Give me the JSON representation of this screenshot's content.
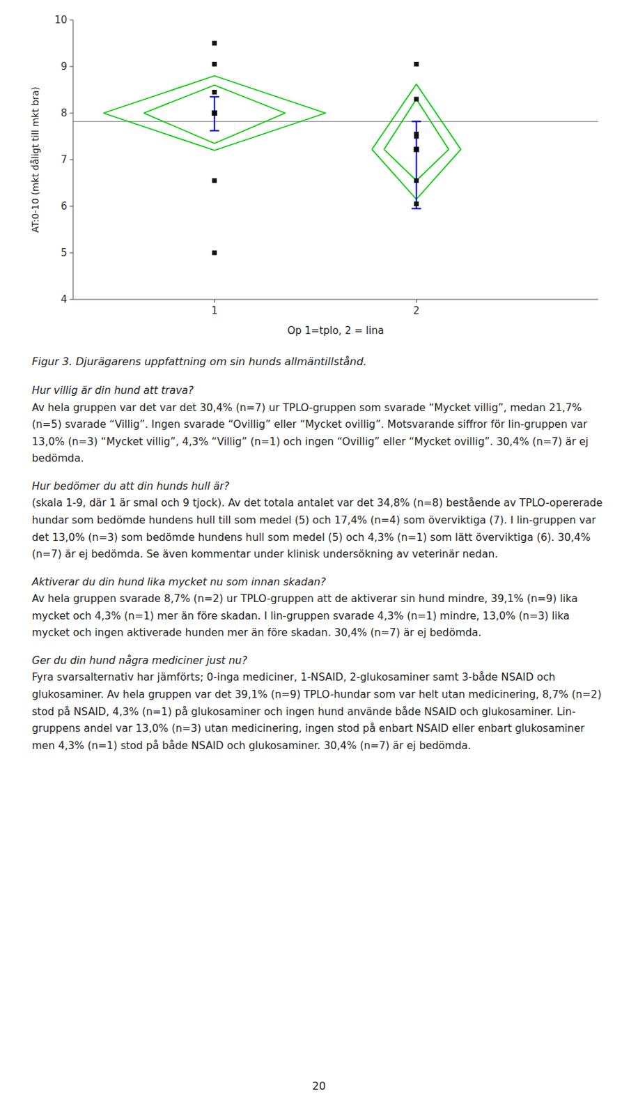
{
  "chart_data": {
    "type": "scatter",
    "xlabel": "Op 1=tplo, 2 = lina",
    "ylabel": "AT:0-10 (mkt dåligt till mkt bra)",
    "xlim": [
      0.3,
      2.9
    ],
    "ylim": [
      4,
      10
    ],
    "xticks": [
      1,
      2
    ],
    "yticks": [
      4,
      5,
      6,
      7,
      8,
      9,
      10
    ],
    "grid": false,
    "reference_line": {
      "value": 7.82,
      "color": "#999999"
    },
    "series": [
      {
        "center": 1,
        "x": [
          1,
          1,
          1,
          1,
          1,
          1
        ],
        "values": [
          9.5,
          9.05,
          8.45,
          6.55,
          5.0,
          8.0
        ],
        "color": "#111111",
        "marker": "square",
        "mean": {
          "value": 8.0,
          "color": "#000000"
        },
        "error_bar": {
          "lower": 7.62,
          "upper": 8.35,
          "color": "#0000cc"
        },
        "diamond": {
          "mid": 8.0,
          "top": 8.8,
          "bottom": 7.2,
          "left": 0.45,
          "right": 1.55,
          "color": "#00cc00"
        },
        "inner_diamond": {
          "mid": 8.0,
          "top": 8.6,
          "bottom": 7.35,
          "left": 0.65,
          "right": 1.35,
          "color": "#00cc00"
        }
      },
      {
        "center": 2,
        "x": [
          2,
          2,
          2,
          2,
          2,
          2
        ],
        "values": [
          9.05,
          8.3,
          7.55,
          7.5,
          6.55,
          6.05
        ],
        "color": "#111111",
        "marker": "square",
        "mean": {
          "value": 7.22,
          "color": "#000000"
        },
        "error_bar": {
          "lower": 5.95,
          "upper": 7.82,
          "color": "#0000cc"
        },
        "diamond": {
          "mid": 7.22,
          "top": 8.62,
          "bottom": 6.15,
          "left": 1.78,
          "right": 2.22,
          "color": "#00cc00"
        },
        "inner_diamond": {
          "mid": 7.22,
          "top": 8.3,
          "bottom": 6.55,
          "left": 1.84,
          "right": 2.16,
          "color": "#00cc00"
        }
      }
    ]
  },
  "caption": "Figur 3. Djurägarens uppfattning om sin hunds allmäntillstånd.",
  "paragraphs": [
    {
      "heading": "Hur villig är din hund att trava?",
      "lines": [
        "Av hela gruppen var det var det 30,4% (n=7) ur TPLO-gruppen som svarade “Mycket villig”, medan 21,7% (n=5) svarade “Villig”. Ingen svarade “Ovillig” eller “Mycket ovillig”. Motsvarande siffror för lin-gruppen var 13,0% (n=3) “Mycket villig”, 4,3% “Villig” (n=1) och ingen “Ovillig” eller “Mycket ovillig”. 30,4% (n=7) är ej bedömda."
      ]
    },
    {
      "heading": "Hur bedömer du att din hunds hull är?",
      "lines": [
        "(skala 1-9, där 1 är smal och 9 tjock). Av det totala antalet var det 34,8% (n=8) bestående av TPLO-opererade hundar som bedömde hundens hull till som medel (5) och 17,4% (n=4) som överviktiga (7). I lin-gruppen var det 13,0% (n=3) som bedömde hundens hull som medel (5) och 4,3% (n=1) som lätt överviktiga (6). 30,4% (n=7) är ej bedömda. Se även kommentar under klinisk undersökning av veterinär nedan."
      ]
    },
    {
      "heading": "Aktiverar du din hund lika mycket nu som innan skadan?",
      "lines": [
        "Av hela gruppen svarade 8,7% (n=2) ur TPLO-gruppen att de aktiverar sin hund mindre, 39,1% (n=9) lika mycket och 4,3% (n=1) mer än före skadan. I lin-gruppen svarade 4,3% (n=1) mindre, 13,0% (n=3) lika mycket och ingen aktiverade hunden mer än före skadan. 30,4% (n=7) är ej bedömda."
      ]
    },
    {
      "heading": "Ger du din hund några mediciner just nu?",
      "lines": [
        "Fyra svarsalternativ har jämförts; 0-inga mediciner, 1-NSAID, 2-glukosaminer samt 3-både NSAID och glukosaminer. Av hela gruppen var det 39,1% (n=9) TPLO-hundar som var helt utan medicinering, 8,7% (n=2) stod på NSAID, 4,3% (n=1) på glukosaminer och ingen hund använde både NSAID och glukosaminer. Lin-gruppens andel var 13,0% (n=3) utan medicinering, ingen stod på enbart NSAID eller enbart glukosaminer men 4,3% (n=1) stod på både NSAID och glukosaminer. 30,4% (n=7) är ej bedömda."
      ]
    }
  ],
  "page_number": "20"
}
